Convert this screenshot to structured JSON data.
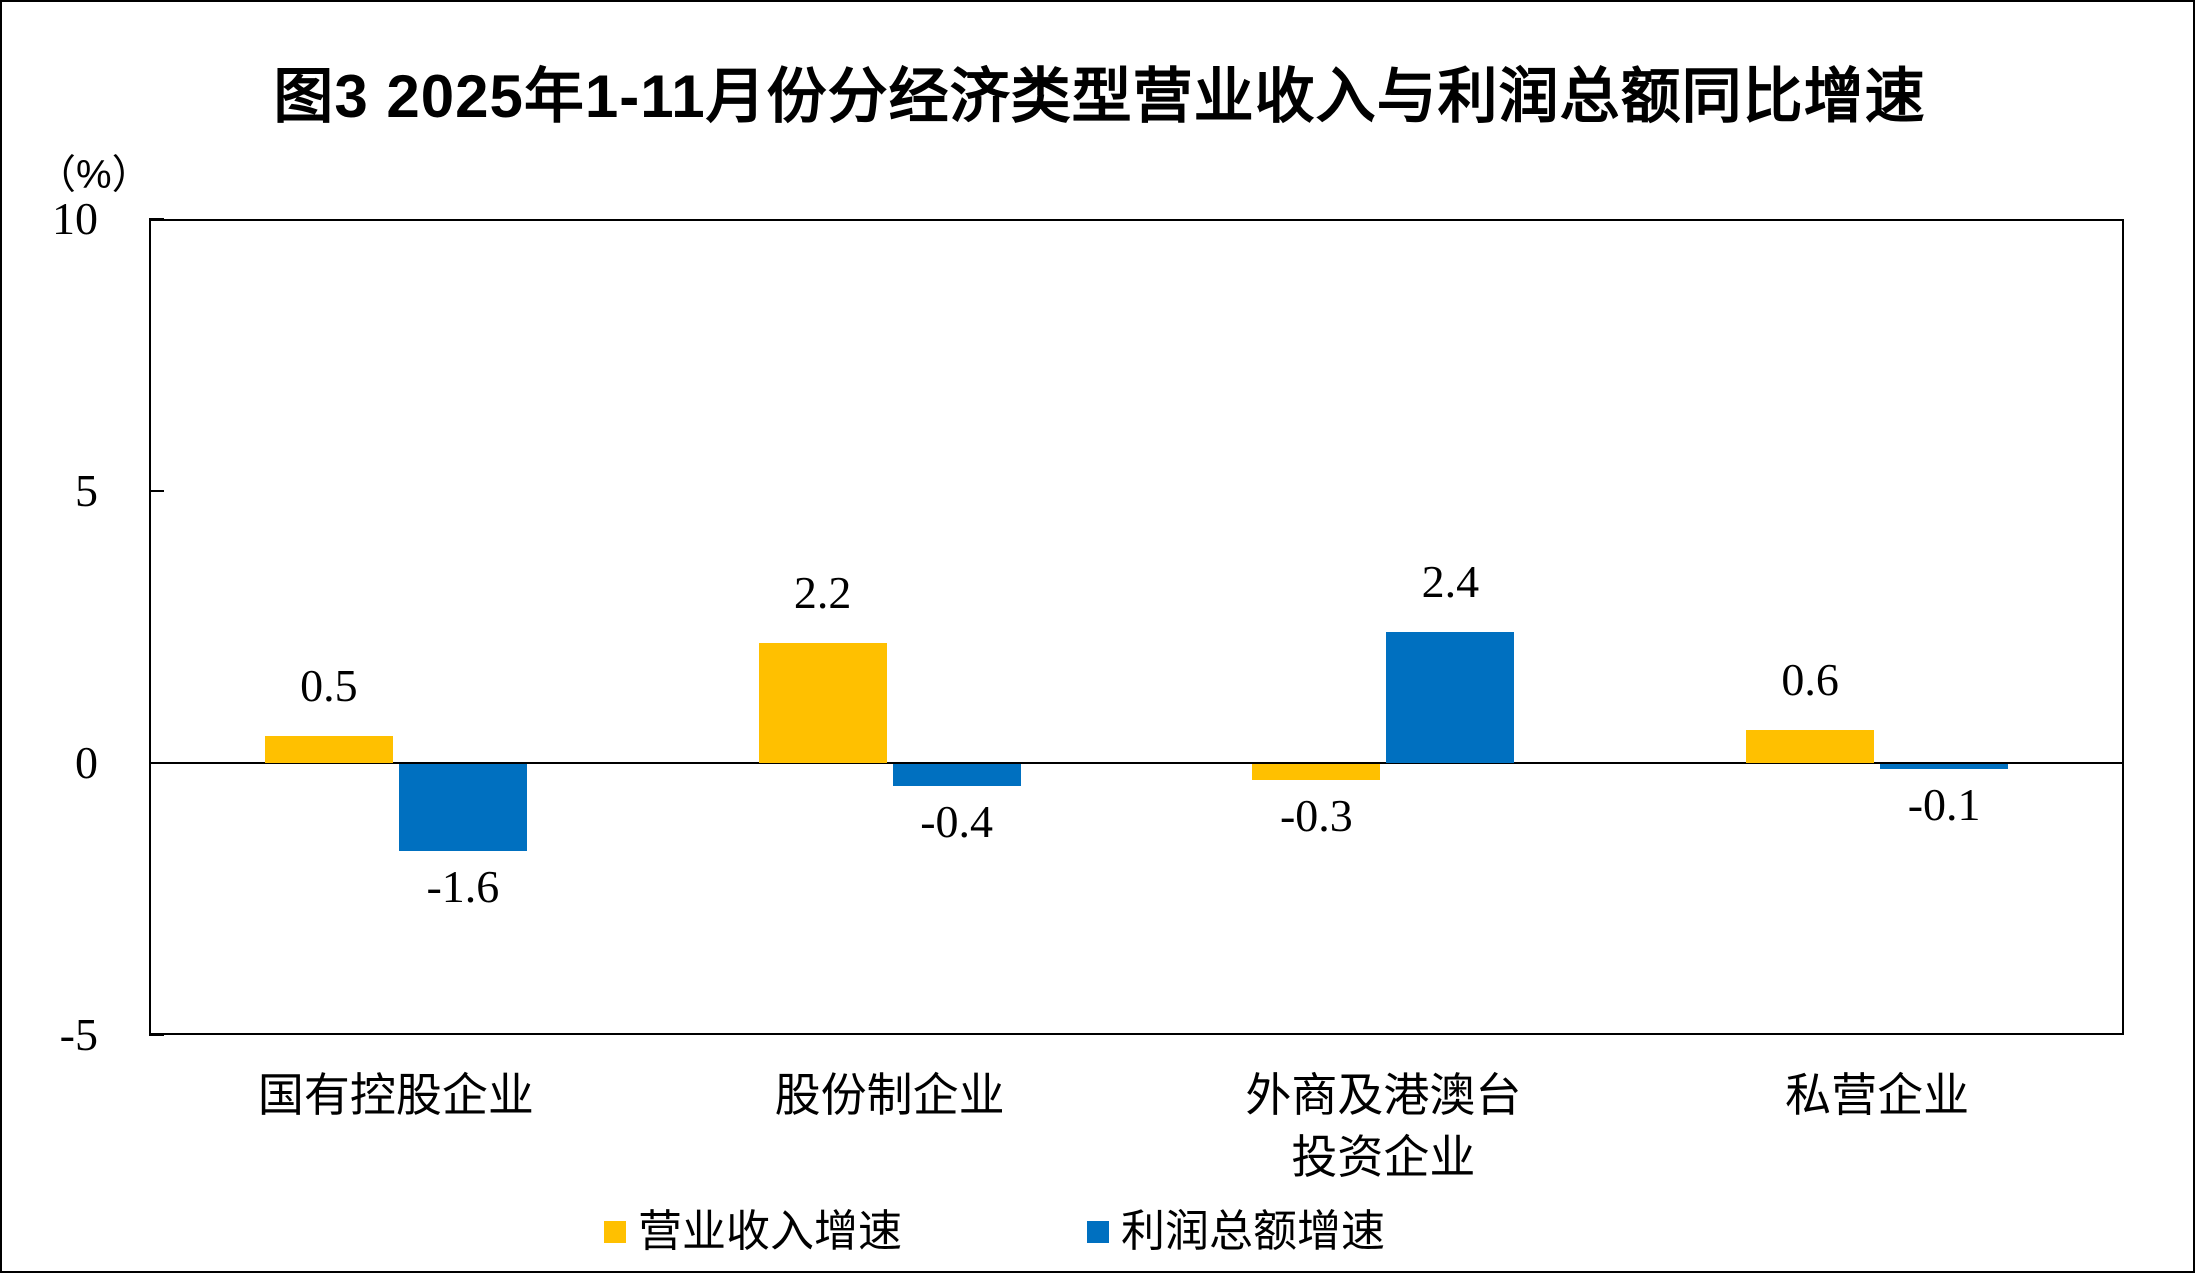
{
  "chart": {
    "title": "图3  2025年1-11月份分经济类型营业收入与利润总额同比增速",
    "unit_label": "（%）"
  },
  "chart_data": {
    "type": "bar",
    "title": "图3 2025年1-11月份分经济类型营业收入与利润总额同比增速",
    "unit": "%",
    "categories": [
      "国有控股企业",
      "股份制企业",
      "外商及港澳台投资企业",
      "私营企业"
    ],
    "category_lines": [
      [
        "国有控股企业"
      ],
      [
        "股份制企业"
      ],
      [
        "外商及港澳台",
        "投资企业"
      ],
      [
        "私营企业"
      ]
    ],
    "series": [
      {
        "name": "营业收入增速",
        "color": "#FFC000",
        "values": [
          0.5,
          2.2,
          -0.3,
          0.6
        ],
        "labels": [
          "0.5",
          "2.2",
          "-0.3",
          "0.6"
        ]
      },
      {
        "name": "利润总额增速",
        "color": "#0070C0",
        "values": [
          -1.6,
          -0.4,
          2.4,
          -0.1
        ],
        "labels": [
          "-1.6",
          "-0.4",
          "2.4",
          "-0.1"
        ]
      }
    ],
    "yticks": [
      10,
      5,
      0,
      -5
    ],
    "ytick_labels": [
      "10",
      "5",
      "0",
      "-5"
    ],
    "ylim": [
      -5,
      10
    ],
    "grid": false,
    "legend_position": "bottom",
    "axis_color": "#000000",
    "text_color": "#000000",
    "background_color": "#FFFFFF"
  }
}
